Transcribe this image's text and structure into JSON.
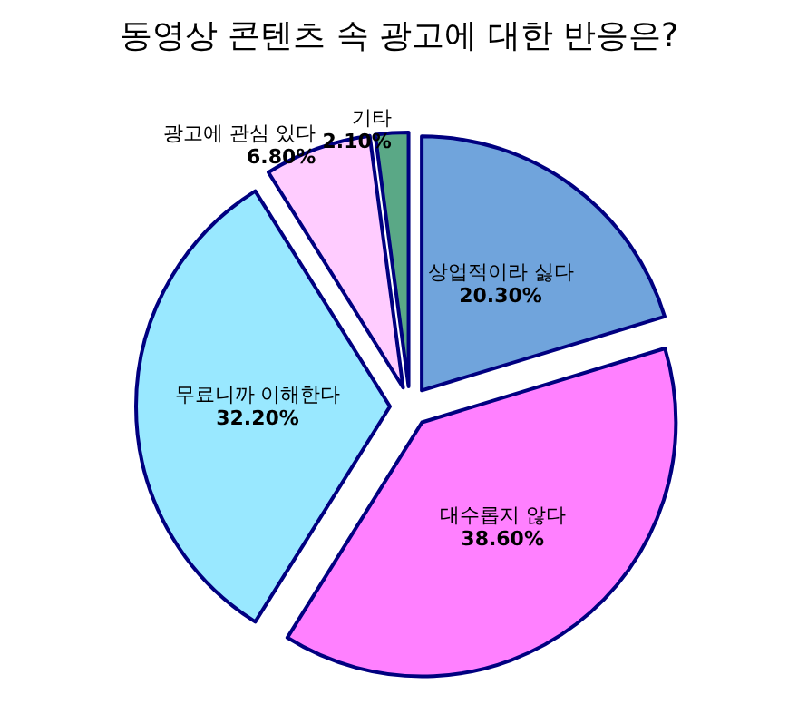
{
  "chart_data": {
    "type": "pie",
    "title": "동영상 콘텐츠 속 광고에 대한 반응은?",
    "categories": [
      "상업적이라 싫다",
      "대수롭지 않다",
      "무료니까 이해한다",
      "광고에 관심 있다",
      "기타"
    ],
    "values": [
      20.3,
      38.6,
      32.2,
      6.8,
      2.1
    ],
    "colors": [
      "#70a4dc",
      "#ff80ff",
      "#99e8ff",
      "#ffccff",
      "#5aa886"
    ],
    "value_labels": [
      "20.30%",
      "38.60%",
      "32.20%",
      "6.80%",
      "2.10%"
    ],
    "legend": false
  }
}
